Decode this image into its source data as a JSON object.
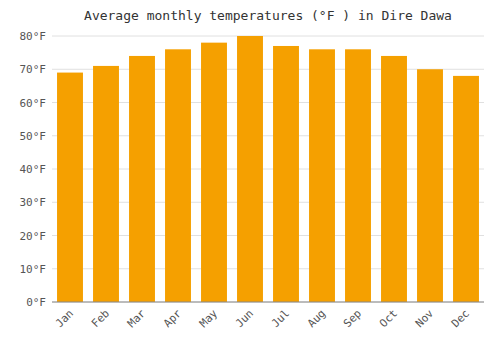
{
  "chart_data": {
    "type": "bar",
    "title": "Average monthly temperatures (°F ) in Dire Dawa",
    "categories": [
      "Jan",
      "Feb",
      "Mar",
      "Apr",
      "May",
      "Jun",
      "Jul",
      "Aug",
      "Sep",
      "Oct",
      "Nov",
      "Dec"
    ],
    "values": [
      69,
      71,
      74,
      76,
      78,
      80,
      77,
      76,
      76,
      74,
      70,
      68
    ],
    "color": "#F5A000",
    "ylim": [
      0,
      80
    ],
    "yticks": [
      {
        "value": 0,
        "label": "0°F"
      },
      {
        "value": 10,
        "label": "10°F"
      },
      {
        "value": 20,
        "label": "20°F"
      },
      {
        "value": 30,
        "label": "30°F"
      },
      {
        "value": 40,
        "label": "40°F"
      },
      {
        "value": 50,
        "label": "50°F"
      },
      {
        "value": 60,
        "label": "60°F"
      },
      {
        "value": 70,
        "label": "70°F"
      },
      {
        "value": 80,
        "label": "80°F"
      }
    ],
    "grid": true
  }
}
